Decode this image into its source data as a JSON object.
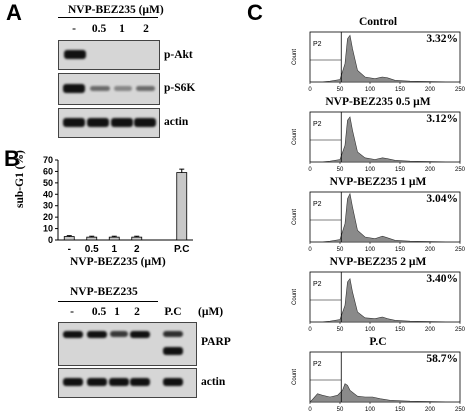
{
  "panelA": {
    "letter": "A",
    "header": "NVP-BEZ235 (µM)",
    "lanes": [
      "-",
      "0.5",
      "1",
      "2"
    ],
    "rows": [
      {
        "label": "p-Akt",
        "intensities": [
          1.0,
          0.0,
          0.0,
          0.0
        ]
      },
      {
        "label": "p-S6K",
        "intensities": [
          1.0,
          0.45,
          0.35,
          0.45
        ]
      },
      {
        "label": "actin",
        "intensities": [
          0.95,
          0.95,
          0.95,
          0.95
        ]
      }
    ]
  },
  "panelB": {
    "letter": "B",
    "chart_data": {
      "type": "bar",
      "categories": [
        "-",
        "0.5",
        "1",
        "2",
        "",
        "P.C"
      ],
      "values": [
        3,
        2.5,
        2.5,
        2.5,
        0,
        59
      ],
      "errors": [
        0.8,
        0.8,
        0.8,
        0.8,
        0,
        3
      ],
      "ylabel": "sub-G1 (%)",
      "xlabel": "NVP-BEZ235 (µM)",
      "ylim": [
        0,
        70
      ],
      "yticks": [
        "0",
        "10",
        "20",
        "30",
        "40",
        "50",
        "60",
        "70"
      ],
      "bar_color": "#c8c8c8"
    },
    "blot": {
      "header": "NVP-BEZ235",
      "unit": "(µM)",
      "lanes": [
        "-",
        "0.5",
        "1",
        "2",
        "P.C"
      ],
      "rows": [
        {
          "label": "PARP"
        },
        {
          "label": "actin"
        }
      ]
    }
  },
  "panelC": {
    "letter": "C",
    "gate_label": "P2",
    "y_axis_label": "Count",
    "x_ticks": [
      "0",
      "50",
      "100",
      "150",
      "200",
      "250"
    ],
    "histograms": [
      {
        "title": "Control",
        "percent": "3.32%"
      },
      {
        "title": "NVP-BEZ235 0.5 µM",
        "percent": "3.12%"
      },
      {
        "title": "NVP-BEZ235 1 µM",
        "percent": "3.04%"
      },
      {
        "title": "NVP-BEZ235 2 µM",
        "percent": "3.40%"
      },
      {
        "title": "P.C",
        "percent": "58.7%"
      }
    ]
  }
}
